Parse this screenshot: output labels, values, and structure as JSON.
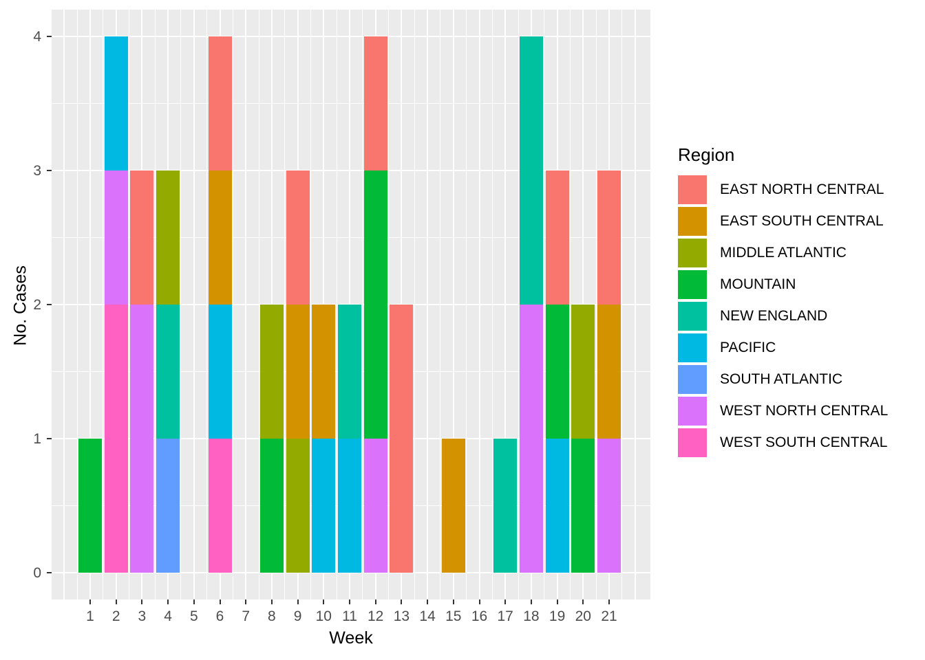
{
  "chart_data": {
    "type": "bar",
    "stacked": true,
    "orientation": "vertical",
    "title": "",
    "xlabel": "Week",
    "ylabel": "No. Cases",
    "legend_title": "Region",
    "legend_position": "right",
    "grid": true,
    "panel_background": "#EBEBEB",
    "grid_color": "#FFFFFF",
    "axis_text_color": "#4D4D4D",
    "tick_color": "#333333",
    "x": [
      1,
      2,
      3,
      4,
      5,
      6,
      7,
      8,
      9,
      10,
      11,
      12,
      13,
      14,
      15,
      16,
      17,
      18,
      19,
      20,
      21
    ],
    "x_tick_labels": [
      "1",
      "2",
      "3",
      "4",
      "5",
      "6",
      "7",
      "8",
      "9",
      "10",
      "11",
      "12",
      "13",
      "14",
      "15",
      "16",
      "17",
      "18",
      "19",
      "20",
      "21"
    ],
    "y_ticks": [
      0,
      1,
      2,
      3,
      4
    ],
    "ylim": [
      0,
      4
    ],
    "stack_order_bottom_to_top": "reverse of series list order",
    "series": [
      {
        "name": "EAST NORTH CENTRAL",
        "color": "#F8766D",
        "values": [
          0,
          0,
          1,
          0,
          0,
          1,
          0,
          0,
          1,
          0,
          0,
          1,
          2,
          0,
          0,
          0,
          0,
          0,
          1,
          0,
          1
        ]
      },
      {
        "name": "EAST SOUTH CENTRAL",
        "color": "#D39200",
        "values": [
          0,
          0,
          0,
          0,
          0,
          1,
          0,
          0,
          1,
          1,
          0,
          0,
          0,
          0,
          1,
          0,
          0,
          0,
          0,
          0,
          1
        ]
      },
      {
        "name": "MIDDLE ATLANTIC",
        "color": "#93AA00",
        "values": [
          0,
          0,
          0,
          1,
          0,
          0,
          0,
          1,
          1,
          0,
          0,
          0,
          0,
          0,
          0,
          0,
          0,
          0,
          0,
          1,
          0
        ]
      },
      {
        "name": "MOUNTAIN",
        "color": "#00BA38",
        "values": [
          1,
          0,
          0,
          0,
          0,
          0,
          0,
          1,
          0,
          0,
          0,
          2,
          0,
          0,
          0,
          0,
          0,
          0,
          1,
          1,
          0
        ]
      },
      {
        "name": "NEW ENGLAND",
        "color": "#00C19F",
        "values": [
          0,
          0,
          0,
          1,
          0,
          0,
          0,
          0,
          0,
          0,
          1,
          0,
          0,
          0,
          0,
          0,
          1,
          2,
          0,
          0,
          0
        ]
      },
      {
        "name": "PACIFIC",
        "color": "#00B9E3",
        "values": [
          0,
          1,
          0,
          0,
          0,
          1,
          0,
          0,
          0,
          1,
          1,
          0,
          0,
          0,
          0,
          0,
          0,
          0,
          1,
          0,
          0
        ]
      },
      {
        "name": "SOUTH ATLANTIC",
        "color": "#619CFF",
        "values": [
          0,
          0,
          0,
          1,
          0,
          0,
          0,
          0,
          0,
          0,
          0,
          0,
          0,
          0,
          0,
          0,
          0,
          0,
          0,
          0,
          0
        ]
      },
      {
        "name": "WEST NORTH CENTRAL",
        "color": "#DB72FB",
        "values": [
          0,
          1,
          2,
          0,
          0,
          0,
          0,
          0,
          0,
          0,
          0,
          1,
          0,
          0,
          0,
          0,
          0,
          2,
          0,
          0,
          1
        ]
      },
      {
        "name": "WEST SOUTH CENTRAL",
        "color": "#FF61C3",
        "values": [
          0,
          2,
          0,
          0,
          0,
          1,
          0,
          0,
          0,
          0,
          0,
          0,
          0,
          0,
          0,
          0,
          0,
          0,
          0,
          0,
          0
        ]
      }
    ]
  }
}
